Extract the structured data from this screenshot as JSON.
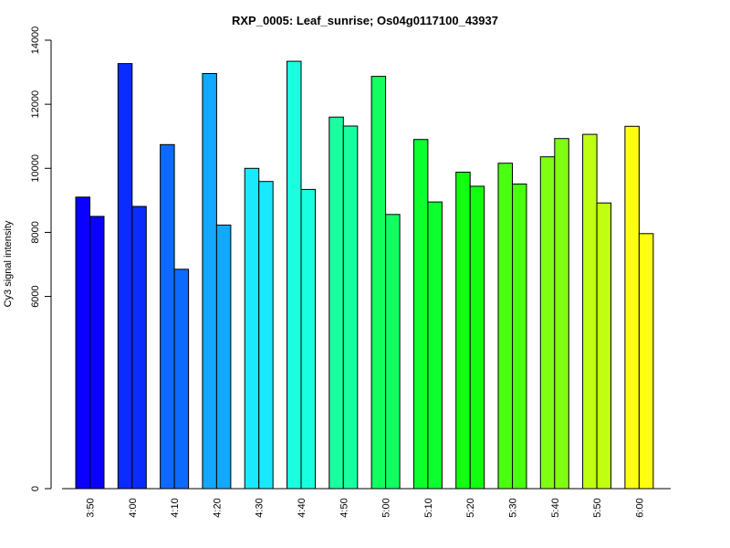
{
  "chart_data": {
    "type": "bar",
    "title": "RXP_0005: Leaf_sunrise; Os04g0117100_43937",
    "ylabel": "Cy3 signal intensity",
    "xlabel": "",
    "y_ticks": [
      "0",
      "6000",
      "8000",
      "10000",
      "12000",
      "14000"
    ],
    "categories": [
      "3:50",
      "4:00",
      "4:10",
      "4:20",
      "4:30",
      "4:40",
      "4:50",
      "5:00",
      "5:10",
      "5:20",
      "5:30",
      "5:40",
      "5:50",
      "6:00"
    ],
    "series": [
      {
        "values": [
          9100,
          13270,
          10740,
          12960,
          10000,
          13340,
          11600,
          12870,
          10900,
          9880,
          10160,
          10360,
          11060,
          11310
        ]
      },
      {
        "values": [
          8500,
          8810,
          6850,
          8230,
          9590,
          9340,
          11320,
          8560,
          8950,
          9440,
          9510,
          10930,
          8920,
          7960
        ]
      }
    ],
    "bar_colors": [
      "#0A00FF",
      "#0A2CFF",
      "#0D6AFF",
      "#12A8FF",
      "#1AE8FF",
      "#1AFFE0",
      "#1AFFA0",
      "#12FF60",
      "#0DFF30",
      "#12FF12",
      "#4AFF12",
      "#80FF12",
      "#C0FF12",
      "#FFFF12"
    ],
    "ylim": [
      0,
      14000
    ],
    "grid": false,
    "legend": "none"
  }
}
